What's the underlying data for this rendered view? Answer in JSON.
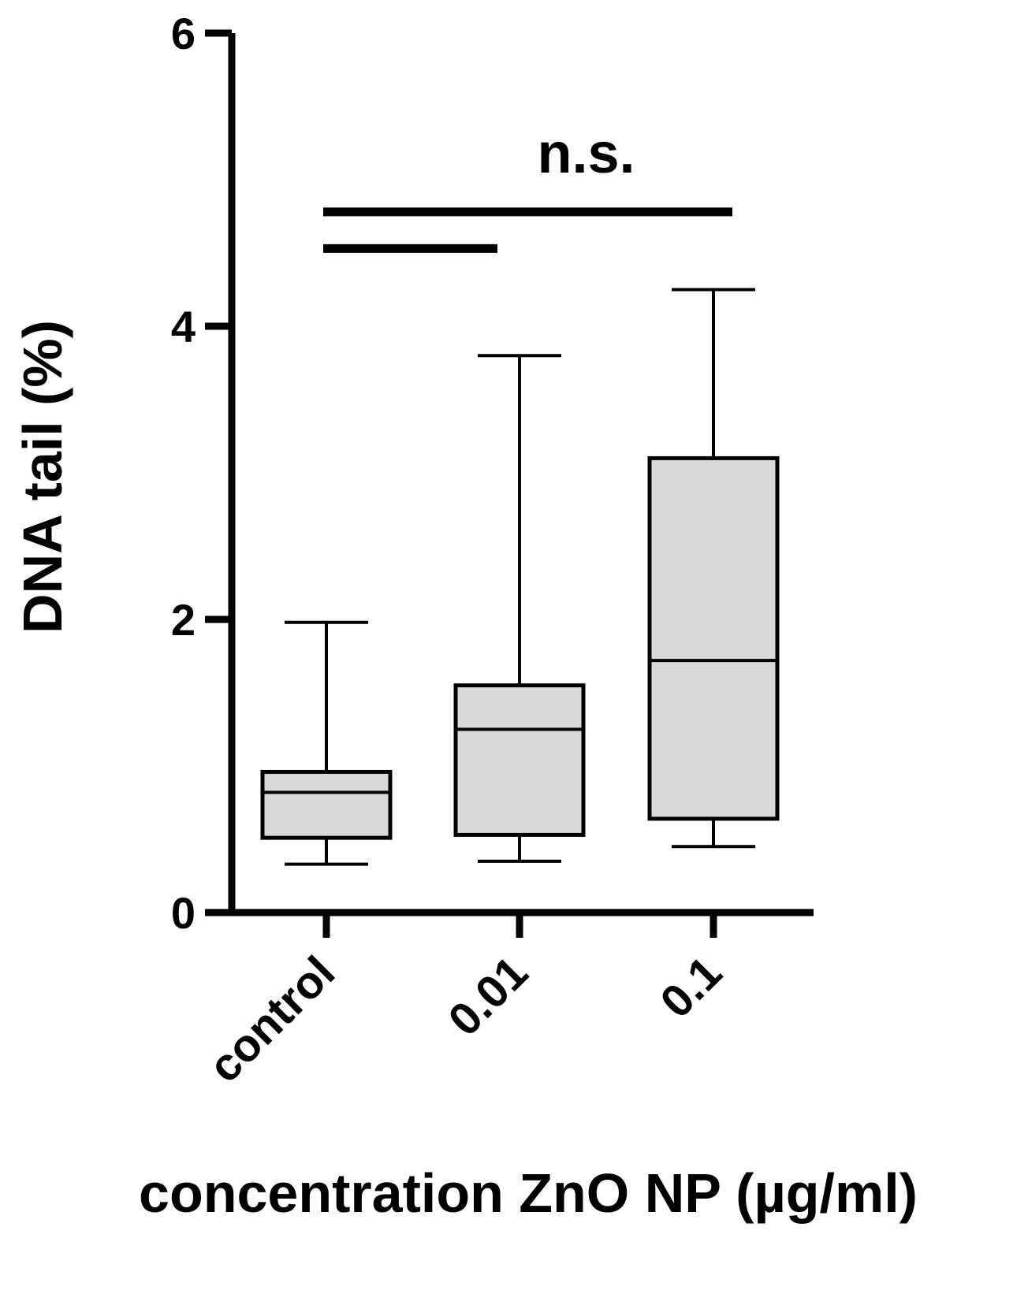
{
  "chart_data": {
    "type": "box",
    "categories": [
      "control",
      "0.01",
      "0.1"
    ],
    "boxes": [
      {
        "category": "control",
        "whisker_low": 0.33,
        "q1": 0.51,
        "median": 0.82,
        "q3": 0.96,
        "whisker_high": 1.98
      },
      {
        "category": "0.01",
        "whisker_low": 0.35,
        "q1": 0.53,
        "median": 1.25,
        "q3": 1.55,
        "whisker_high": 3.8
      },
      {
        "category": "0.1",
        "whisker_low": 0.45,
        "q1": 0.64,
        "median": 1.72,
        "q3": 3.1,
        "whisker_high": 4.25
      }
    ],
    "xlabel": "concentration ZnO NP (µg/ml)",
    "ylabel": "DNA tail (%)",
    "ylim": [
      0,
      6
    ],
    "yticks": [
      0,
      2,
      4,
      6
    ],
    "grid": false,
    "annotations": [
      {
        "text": "n.s.",
        "from_category": "control",
        "to_category": "0.1",
        "y": 4.78
      },
      {
        "text": "",
        "from_category": "control",
        "to_category": "0.01",
        "y": 4.53
      }
    ],
    "colors": {
      "box_fill": "#d9d9d9",
      "stroke": "#000000"
    }
  }
}
